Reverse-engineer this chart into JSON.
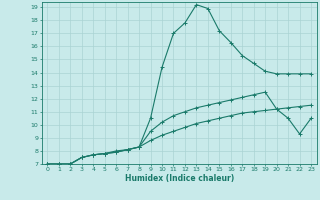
{
  "xlabel": "Humidex (Indice chaleur)",
  "background_color": "#c8eaea",
  "grid_color": "#aad4d4",
  "line_color": "#1a7a6a",
  "xlim": [
    -0.5,
    23.5
  ],
  "ylim": [
    7,
    19.4
  ],
  "xticks": [
    0,
    1,
    2,
    3,
    4,
    5,
    6,
    7,
    8,
    9,
    10,
    11,
    12,
    13,
    14,
    15,
    16,
    17,
    18,
    19,
    20,
    21,
    22,
    23
  ],
  "yticks": [
    7,
    8,
    9,
    10,
    11,
    12,
    13,
    14,
    15,
    16,
    17,
    18,
    19
  ],
  "line1_x": [
    0,
    1,
    2,
    3,
    4,
    5,
    6,
    7,
    8,
    9,
    10,
    11,
    12,
    13,
    14,
    15,
    16,
    17,
    18,
    19,
    20,
    21,
    22,
    23
  ],
  "line1_y": [
    7.0,
    7.0,
    7.0,
    7.5,
    7.7,
    7.8,
    7.9,
    8.1,
    8.3,
    8.8,
    9.2,
    9.5,
    9.8,
    10.1,
    10.3,
    10.5,
    10.7,
    10.9,
    11.0,
    11.1,
    11.2,
    11.3,
    11.4,
    11.5
  ],
  "line2_x": [
    0,
    1,
    2,
    3,
    4,
    5,
    6,
    7,
    8,
    9,
    10,
    11,
    12,
    13,
    14,
    15,
    16,
    17,
    18,
    19,
    20,
    21,
    22,
    23
  ],
  "line2_y": [
    7.0,
    7.0,
    7.0,
    7.5,
    7.7,
    7.8,
    7.9,
    8.1,
    8.3,
    9.5,
    10.2,
    10.7,
    11.0,
    11.3,
    11.5,
    11.7,
    11.9,
    12.1,
    12.3,
    12.5,
    11.2,
    10.5,
    9.3,
    10.5
  ],
  "line3_x": [
    0,
    1,
    2,
    3,
    4,
    5,
    6,
    7,
    8,
    9,
    10,
    11,
    12,
    13,
    14,
    15,
    16,
    17,
    18,
    19,
    20,
    21,
    22,
    23
  ],
  "line3_y": [
    7.0,
    7.0,
    7.0,
    7.5,
    7.7,
    7.8,
    8.0,
    8.1,
    8.3,
    10.5,
    14.4,
    17.0,
    17.8,
    19.2,
    18.9,
    17.2,
    16.3,
    15.3,
    14.7,
    14.1,
    13.9,
    13.9,
    13.9,
    13.9
  ],
  "figsize": [
    3.2,
    2.0
  ],
  "dpi": 100
}
